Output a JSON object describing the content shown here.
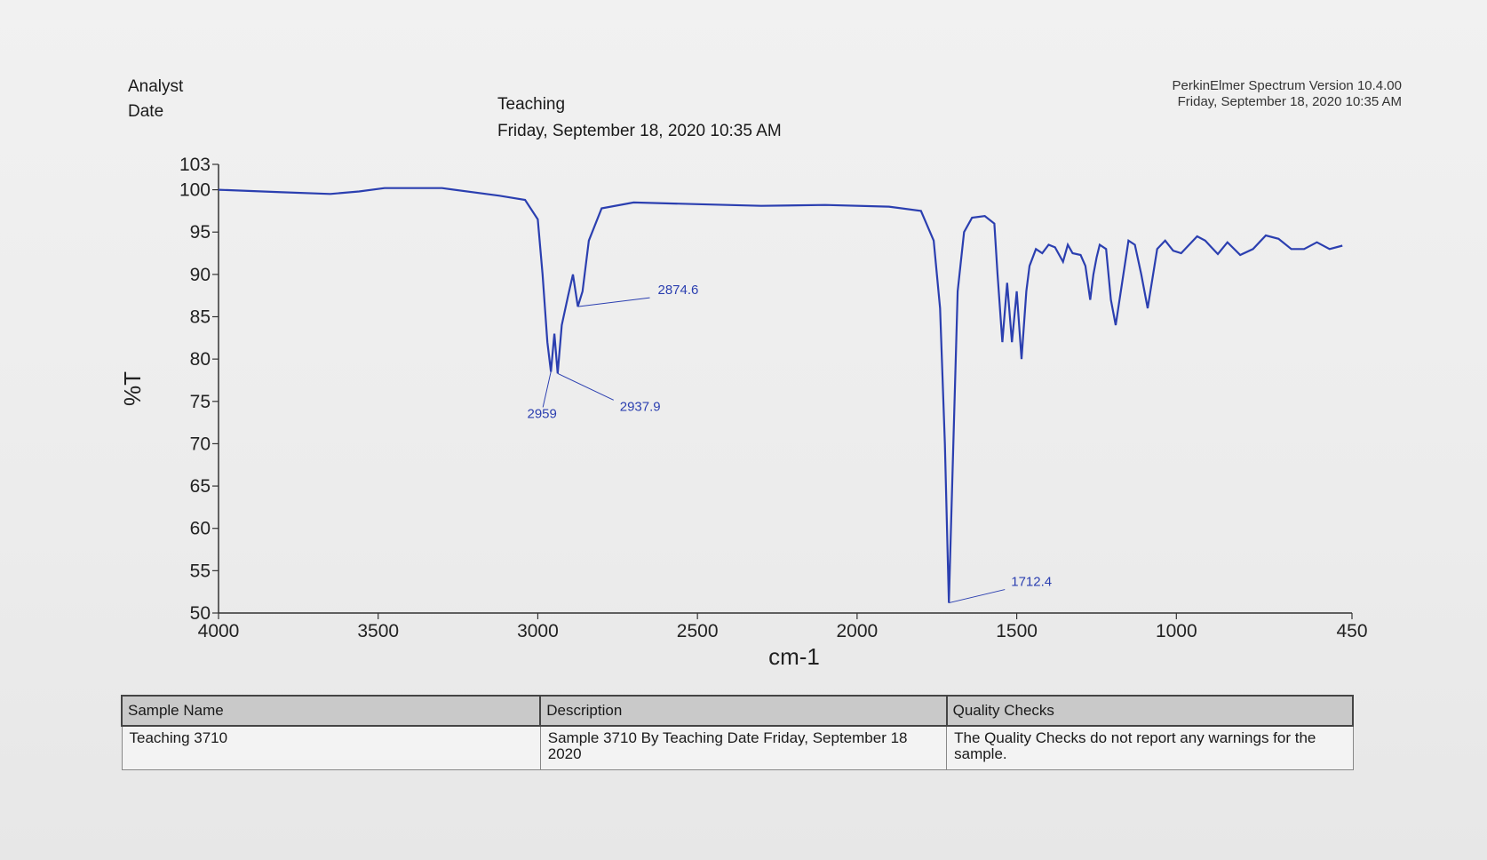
{
  "header": {
    "analyst_label": "Analyst",
    "date_label": "Date",
    "analyst_value": "Teaching",
    "date_value": "Friday, September 18, 2020 10:35 AM",
    "software": "PerkinElmer Spectrum Version 10.4.00",
    "software_date": "Friday, September 18, 2020 10:35 AM"
  },
  "chart_data": {
    "type": "line",
    "xlabel": "cm-1",
    "ylabel": "%T",
    "xlim": [
      4000,
      450
    ],
    "ylim": [
      50,
      103
    ],
    "x_ticks": [
      4000,
      3500,
      3000,
      2500,
      2000,
      1500,
      1000,
      450
    ],
    "y_ticks": [
      103,
      100,
      95,
      90,
      85,
      80,
      75,
      70,
      65,
      60,
      55,
      50
    ],
    "series_color": "#2b3fb0",
    "x": [
      4000,
      3800,
      3650,
      3560,
      3480,
      3300,
      3120,
      3040,
      3000,
      2985,
      2970,
      2959,
      2948,
      2937.9,
      2925,
      2905,
      2890,
      2874.6,
      2860,
      2840,
      2800,
      2700,
      2500,
      2300,
      2100,
      1900,
      1800,
      1760,
      1740,
      1725,
      1712.4,
      1700,
      1685,
      1665,
      1640,
      1600,
      1570,
      1560,
      1545,
      1530,
      1515,
      1500,
      1485,
      1470,
      1460,
      1440,
      1420,
      1400,
      1380,
      1355,
      1340,
      1325,
      1300,
      1285,
      1270,
      1260,
      1250,
      1240,
      1220,
      1205,
      1190,
      1170,
      1150,
      1130,
      1110,
      1090,
      1060,
      1035,
      1010,
      985,
      960,
      935,
      910,
      890,
      870,
      840,
      800,
      760,
      720,
      680,
      640,
      600,
      560,
      520,
      480
    ],
    "y": [
      100,
      99.7,
      99.5,
      99.8,
      100.2,
      100.2,
      99.3,
      98.8,
      96.5,
      90,
      82,
      78.5,
      83,
      78.3,
      84,
      87.5,
      90,
      86.2,
      88,
      94,
      97.8,
      98.5,
      98.3,
      98.1,
      98.2,
      98.0,
      97.5,
      94,
      86,
      70,
      51.2,
      68,
      88,
      95,
      96.7,
      96.9,
      96,
      90,
      82,
      89,
      82,
      88,
      80,
      88,
      91,
      93,
      92.5,
      93.5,
      93.2,
      91.5,
      93.5,
      92.5,
      92.3,
      91,
      87,
      90,
      92,
      93.5,
      93.0,
      87,
      84,
      89,
      94,
      93.5,
      90,
      86,
      93,
      94,
      92.8,
      92.5,
      93.5,
      94.5,
      94,
      93.2,
      92.4,
      93.8,
      92.3,
      93,
      94.6,
      94.2,
      93,
      93,
      93.8,
      93,
      93.4
    ],
    "peak_labels": [
      {
        "x": 2874.6,
        "y": 86.2,
        "text": "2874.6"
      },
      {
        "x": 2959,
        "y": 78.5,
        "text": "2959"
      },
      {
        "x": 2937.9,
        "y": 78.3,
        "text": "2937.9"
      },
      {
        "x": 1712.4,
        "y": 51.2,
        "text": "1712.4"
      }
    ]
  },
  "table": {
    "headers": [
      "Sample Name",
      "Description",
      "Quality Checks"
    ],
    "row": [
      "Teaching 3710",
      "Sample 3710 By Teaching Date Friday, September 18 2020",
      "The Quality Checks do not report any warnings for the sample."
    ]
  }
}
